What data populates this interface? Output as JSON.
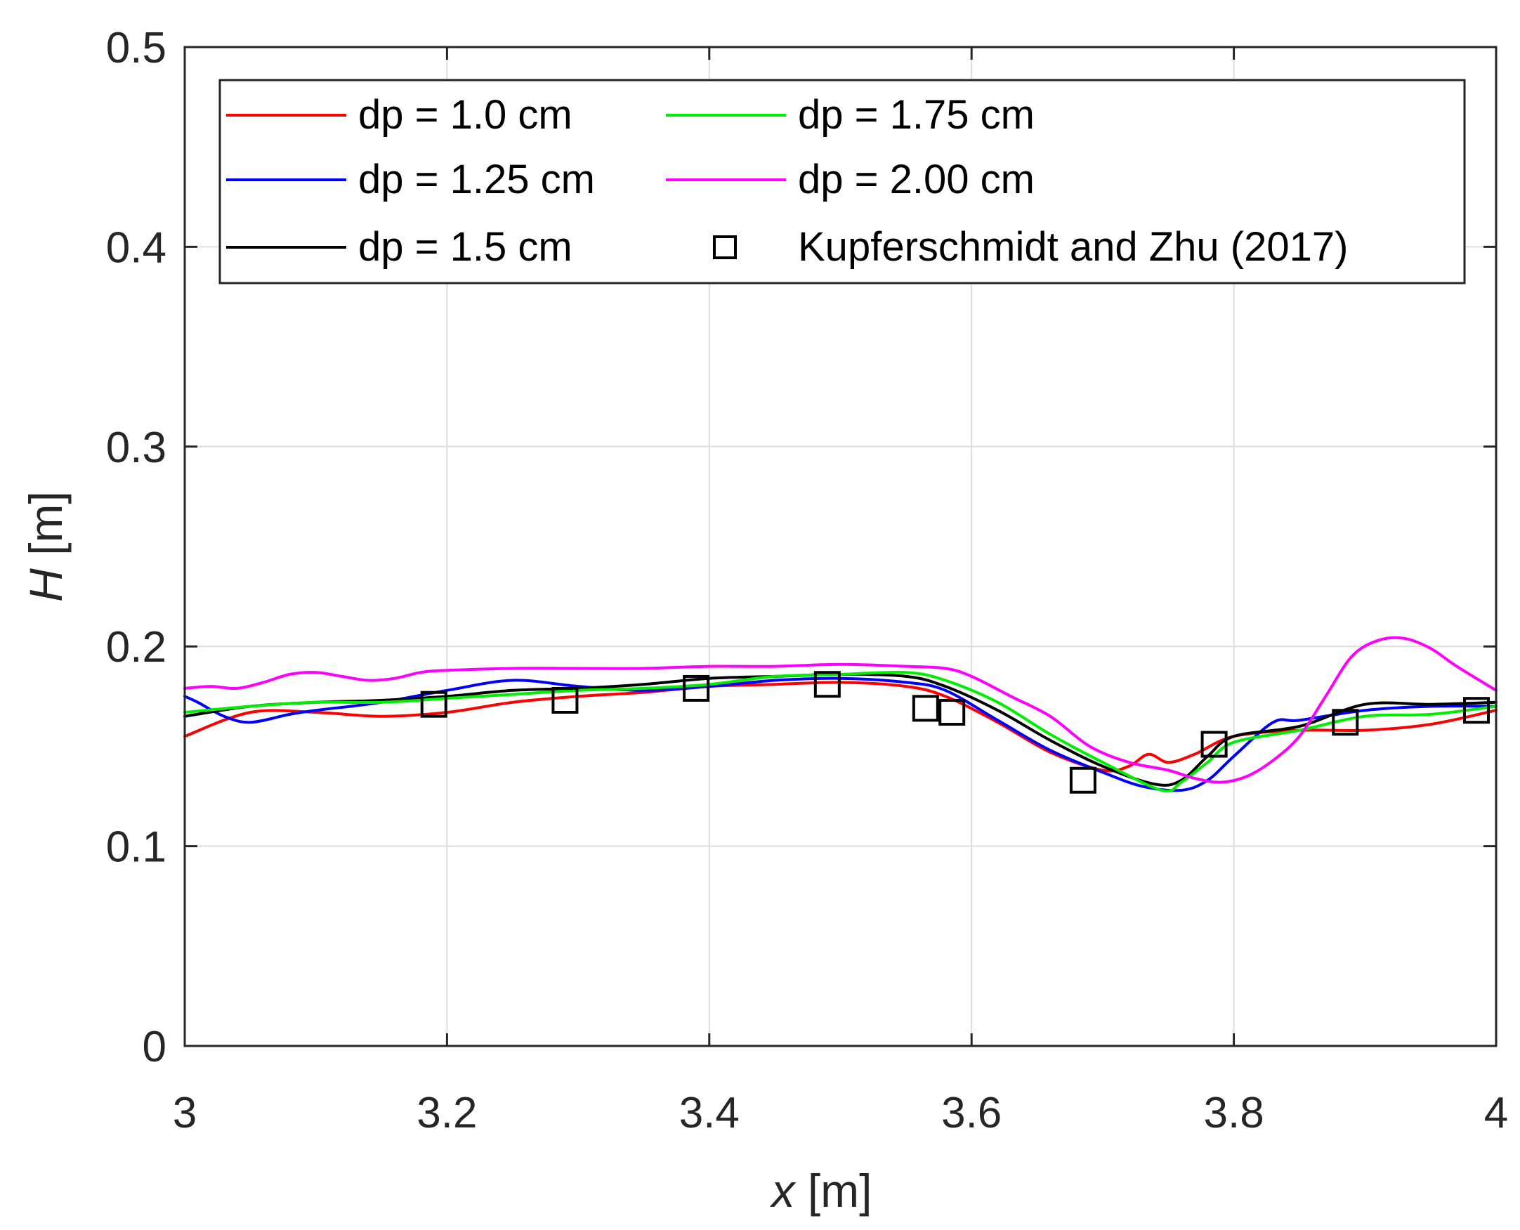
{
  "chart_data": {
    "type": "line",
    "xlabel": {
      "var": "x",
      "unit": " [m]"
    },
    "ylabel": {
      "var": "H",
      "unit": " [m]"
    },
    "xlim": [
      3,
      4
    ],
    "ylim": [
      0,
      0.5
    ],
    "grid": true,
    "legend_position": "top",
    "x_tick_labels": [
      "3",
      "3.2",
      "3.4",
      "3.6",
      "3.8",
      "4"
    ],
    "y_tick_labels": [
      "0",
      "0.1",
      "0.2",
      "0.3",
      "0.4",
      "0.5"
    ],
    "series": [
      {
        "name": "dp = 1.0 cm",
        "color": "#ff0000",
        "x": [
          3.0,
          3.05,
          3.1,
          3.15,
          3.2,
          3.25,
          3.3,
          3.35,
          3.4,
          3.45,
          3.5,
          3.55,
          3.58,
          3.62,
          3.66,
          3.7,
          3.72,
          3.735,
          3.75,
          3.77,
          3.8,
          3.85,
          3.9,
          3.95,
          4.0
        ],
        "y": [
          0.155,
          0.167,
          0.167,
          0.165,
          0.167,
          0.172,
          0.175,
          0.177,
          0.18,
          0.181,
          0.182,
          0.18,
          0.175,
          0.162,
          0.147,
          0.138,
          0.14,
          0.146,
          0.142,
          0.146,
          0.155,
          0.158,
          0.158,
          0.161,
          0.168
        ]
      },
      {
        "name": "dp = 1.25 cm",
        "color": "#0000ff",
        "x": [
          3.0,
          3.01,
          3.03,
          3.05,
          3.08,
          3.1,
          3.15,
          3.2,
          3.25,
          3.3,
          3.35,
          3.4,
          3.45,
          3.5,
          3.55,
          3.58,
          3.62,
          3.66,
          3.7,
          3.73,
          3.76,
          3.78,
          3.8,
          3.83,
          3.85,
          3.9,
          3.95,
          4.0
        ],
        "y": [
          0.175,
          0.172,
          0.165,
          0.162,
          0.166,
          0.168,
          0.172,
          0.178,
          0.183,
          0.18,
          0.178,
          0.18,
          0.183,
          0.184,
          0.182,
          0.178,
          0.163,
          0.148,
          0.137,
          0.13,
          0.128,
          0.133,
          0.145,
          0.162,
          0.163,
          0.168,
          0.17,
          0.17
        ]
      },
      {
        "name": "dp = 1.5 cm",
        "color": "#000000",
        "x": [
          3.0,
          3.05,
          3.1,
          3.15,
          3.2,
          3.25,
          3.3,
          3.35,
          3.4,
          3.45,
          3.5,
          3.55,
          3.58,
          3.62,
          3.66,
          3.7,
          3.74,
          3.76,
          3.78,
          3.8,
          3.85,
          3.9,
          3.95,
          4.0
        ],
        "y": [
          0.165,
          0.17,
          0.172,
          0.173,
          0.175,
          0.178,
          0.179,
          0.181,
          0.184,
          0.185,
          0.186,
          0.185,
          0.18,
          0.168,
          0.153,
          0.14,
          0.131,
          0.133,
          0.145,
          0.155,
          0.16,
          0.171,
          0.171,
          0.172
        ]
      },
      {
        "name": "dp = 1.75 cm",
        "color": "#00ee00",
        "x": [
          3.0,
          3.05,
          3.1,
          3.15,
          3.2,
          3.25,
          3.3,
          3.35,
          3.4,
          3.45,
          3.5,
          3.55,
          3.58,
          3.62,
          3.66,
          3.7,
          3.745,
          3.76,
          3.78,
          3.8,
          3.85,
          3.9,
          3.95,
          4.0
        ],
        "y": [
          0.167,
          0.17,
          0.172,
          0.172,
          0.174,
          0.176,
          0.178,
          0.179,
          0.181,
          0.185,
          0.186,
          0.187,
          0.183,
          0.172,
          0.156,
          0.142,
          0.128,
          0.132,
          0.142,
          0.152,
          0.158,
          0.165,
          0.166,
          0.17
        ]
      },
      {
        "name": "dp = 2.00 cm",
        "color": "#ff00ff",
        "x": [
          3.0,
          3.02,
          3.04,
          3.06,
          3.08,
          3.1,
          3.12,
          3.14,
          3.16,
          3.18,
          3.2,
          3.25,
          3.3,
          3.35,
          3.4,
          3.45,
          3.5,
          3.55,
          3.58,
          3.6,
          3.63,
          3.66,
          3.69,
          3.72,
          3.75,
          3.77,
          3.79,
          3.81,
          3.83,
          3.85,
          3.87,
          3.89,
          3.91,
          3.93,
          3.95,
          3.97,
          4.0
        ],
        "y": [
          0.179,
          0.18,
          0.179,
          0.182,
          0.186,
          0.187,
          0.185,
          0.183,
          0.184,
          0.187,
          0.188,
          0.189,
          0.189,
          0.189,
          0.19,
          0.19,
          0.191,
          0.19,
          0.189,
          0.185,
          0.175,
          0.165,
          0.15,
          0.142,
          0.138,
          0.134,
          0.132,
          0.135,
          0.143,
          0.155,
          0.175,
          0.195,
          0.203,
          0.204,
          0.199,
          0.19,
          0.178
        ]
      }
    ],
    "markers": {
      "name": "Kupferschmidt and Zhu (2017)",
      "symbol": "square",
      "x": [
        3.19,
        3.29,
        3.39,
        3.49,
        3.565,
        3.585,
        3.685,
        3.785,
        3.885,
        3.985
      ],
      "y": [
        0.171,
        0.173,
        0.179,
        0.181,
        0.169,
        0.167,
        0.133,
        0.151,
        0.162,
        0.168
      ]
    }
  }
}
